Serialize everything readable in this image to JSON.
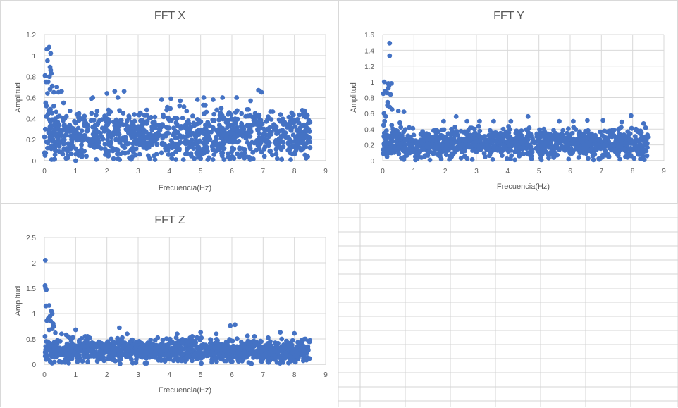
{
  "colors": {
    "marker": "#4472C4",
    "gridline": "#d9d9d9",
    "axis": "#bfbfbf",
    "text": "#595959",
    "cell_border": "#d4d4d4"
  },
  "chart_data": [
    {
      "id": "x",
      "type": "scatter",
      "title": "FFT X",
      "xlabel": "Frecuencia(Hz)",
      "ylabel": "Amplitud",
      "xlim": [
        0,
        9
      ],
      "ylim": [
        0,
        1.2
      ],
      "xticks": [
        0,
        1,
        2,
        3,
        4,
        5,
        6,
        7,
        8,
        9
      ],
      "yticks": [
        0,
        0.2,
        0.4,
        0.6,
        0.8,
        1,
        1.2
      ],
      "xtick_labels": [
        "0",
        "1",
        "2",
        "3",
        "4",
        "5",
        "6",
        "7",
        "8",
        "9"
      ],
      "ytick_labels": [
        "0",
        "0.2",
        "0.4",
        "0.6",
        "0.8",
        "1",
        "1.2"
      ],
      "grid": "vertical and horizontal",
      "series": [
        {
          "points": [
            [
              0.02,
              0.81
            ],
            [
              0.05,
              0.75
            ],
            [
              0.08,
              1.06
            ],
            [
              0.12,
              1.07
            ],
            [
              0.15,
              1.08
            ],
            [
              0.1,
              0.95
            ],
            [
              0.2,
              1.02
            ],
            [
              0.18,
              0.89
            ],
            [
              0.2,
              0.86
            ],
            [
              0.22,
              0.83
            ],
            [
              0.16,
              0.8
            ],
            [
              0.12,
              0.75
            ],
            [
              0.25,
              0.71
            ],
            [
              0.3,
              0.65
            ],
            [
              0.18,
              0.68
            ],
            [
              0.1,
              0.64
            ],
            [
              0.45,
              0.65
            ],
            [
              0.55,
              0.66
            ],
            [
              0.4,
              0.7
            ],
            [
              0.04,
              0.55
            ],
            [
              0.06,
              0.42
            ],
            [
              0.03,
              0.3
            ],
            [
              0.07,
              0.18
            ],
            [
              0.1,
              0.12
            ],
            [
              0.02,
              0.05
            ],
            [
              0.14,
              0.48
            ],
            [
              0.3,
              0.52
            ],
            [
              1.0,
              0.0
            ],
            [
              1.5,
              0.59
            ],
            [
              1.55,
              0.6
            ],
            [
              2.0,
              0.64
            ],
            [
              2.25,
              0.66
            ],
            [
              2.55,
              0.66
            ],
            [
              2.35,
              0.6
            ],
            [
              3.75,
              0.58
            ],
            [
              4.05,
              0.59
            ],
            [
              4.35,
              0.57
            ],
            [
              4.9,
              0.58
            ],
            [
              5.1,
              0.6
            ],
            [
              5.4,
              0.58
            ],
            [
              5.7,
              0.6
            ],
            [
              6.15,
              0.6
            ],
            [
              6.6,
              0.57
            ],
            [
              6.85,
              0.67
            ],
            [
              6.95,
              0.65
            ],
            [
              8.25,
              0.48
            ],
            [
              5.0,
              0.02
            ],
            [
              5.75,
              0.01
            ],
            [
              7.45,
              0.02
            ]
          ]
        }
      ]
    },
    {
      "id": "y",
      "type": "scatter",
      "title": "FFT Y",
      "xlabel": "Frecuencia(Hz)",
      "ylabel": "Amplitud",
      "xlim": [
        0,
        9
      ],
      "ylim": [
        0,
        1.6
      ],
      "xticks": [
        0,
        1,
        2,
        3,
        4,
        5,
        6,
        7,
        8,
        9
      ],
      "yticks": [
        0,
        0.2,
        0.4,
        0.6,
        0.8,
        1,
        1.2,
        1.4,
        1.6
      ],
      "xtick_labels": [
        "0",
        "1",
        "2",
        "3",
        "4",
        "5",
        "6",
        "7",
        "8",
        "9"
      ],
      "ytick_labels": [
        "0",
        "0.2",
        "0.4",
        "0.6",
        "0.8",
        "1",
        "1.2",
        "1.4",
        "1.6"
      ],
      "grid": "vertical and horizontal",
      "series": [
        {
          "points": [
            [
              0.22,
              1.49
            ],
            [
              0.22,
              1.33
            ],
            [
              0.05,
              1.0
            ],
            [
              0.18,
              0.98
            ],
            [
              0.28,
              0.98
            ],
            [
              0.02,
              0.85
            ],
            [
              0.08,
              0.88
            ],
            [
              0.14,
              0.86
            ],
            [
              0.25,
              0.84
            ],
            [
              0.2,
              0.95
            ],
            [
              0.18,
              0.92
            ],
            [
              0.16,
              0.74
            ],
            [
              0.15,
              0.7
            ],
            [
              0.22,
              0.68
            ],
            [
              0.3,
              0.65
            ],
            [
              0.5,
              0.63
            ],
            [
              0.68,
              0.62
            ],
            [
              0.04,
              0.6
            ],
            [
              0.1,
              0.56
            ],
            [
              0.06,
              0.5
            ],
            [
              0.03,
              0.45
            ],
            [
              0.12,
              0.38
            ],
            [
              0.05,
              0.3
            ],
            [
              0.08,
              0.22
            ],
            [
              0.02,
              0.14
            ],
            [
              0.1,
              0.08
            ],
            [
              0.55,
              0.48
            ],
            [
              0.85,
              0.42
            ],
            [
              1.95,
              0.5
            ],
            [
              2.35,
              0.56
            ],
            [
              2.7,
              0.5
            ],
            [
              3.1,
              0.5
            ],
            [
              3.55,
              0.5
            ],
            [
              4.1,
              0.5
            ],
            [
              4.65,
              0.56
            ],
            [
              5.65,
              0.5
            ],
            [
              6.1,
              0.5
            ],
            [
              6.55,
              0.51
            ],
            [
              7.05,
              0.51
            ],
            [
              7.65,
              0.49
            ],
            [
              7.95,
              0.57
            ],
            [
              8.35,
              0.47
            ],
            [
              1.05,
              0.01
            ],
            [
              5.95,
              0.02
            ]
          ]
        }
      ]
    },
    {
      "id": "z",
      "type": "scatter",
      "title": "FFT Z",
      "xlabel": "Frecuencia(Hz)",
      "ylabel": "Amplitud",
      "xlim": [
        0,
        9
      ],
      "ylim": [
        0,
        2.5
      ],
      "xticks": [
        0,
        1,
        2,
        3,
        4,
        5,
        6,
        7,
        8,
        9
      ],
      "yticks": [
        0,
        0.5,
        1,
        1.5,
        2,
        2.5
      ],
      "xtick_labels": [
        "0",
        "1",
        "2",
        "3",
        "4",
        "5",
        "6",
        "7",
        "8",
        "9"
      ],
      "ytick_labels": [
        "0",
        "0.5",
        "1",
        "1.5",
        "2",
        "2.5"
      ],
      "grid": "vertical and horizontal",
      "series": [
        {
          "points": [
            [
              0.03,
              2.05
            ],
            [
              0.02,
              1.55
            ],
            [
              0.04,
              1.5
            ],
            [
              0.06,
              1.47
            ],
            [
              0.05,
              1.15
            ],
            [
              0.15,
              1.16
            ],
            [
              0.22,
              1.05
            ],
            [
              0.25,
              1.0
            ],
            [
              0.18,
              0.95
            ],
            [
              0.12,
              0.9
            ],
            [
              0.08,
              0.86
            ],
            [
              0.2,
              0.85
            ],
            [
              0.28,
              0.8
            ],
            [
              0.3,
              0.75
            ],
            [
              0.25,
              0.7
            ],
            [
              0.15,
              0.68
            ],
            [
              0.35,
              0.62
            ],
            [
              0.55,
              0.6
            ],
            [
              0.7,
              0.58
            ],
            [
              0.02,
              0.55
            ],
            [
              0.06,
              0.45
            ],
            [
              0.04,
              0.35
            ],
            [
              0.1,
              0.28
            ],
            [
              0.07,
              0.18
            ],
            [
              0.12,
              0.1
            ],
            [
              1.0,
              0.68
            ],
            [
              2.4,
              0.72
            ],
            [
              2.65,
              0.6
            ],
            [
              4.25,
              0.6
            ],
            [
              5.0,
              0.63
            ],
            [
              5.5,
              0.6
            ],
            [
              5.95,
              0.76
            ],
            [
              6.1,
              0.78
            ],
            [
              6.5,
              0.56
            ],
            [
              7.55,
              0.63
            ],
            [
              8.0,
              0.61
            ],
            [
              8.35,
              0.5
            ]
          ]
        }
      ]
    }
  ]
}
